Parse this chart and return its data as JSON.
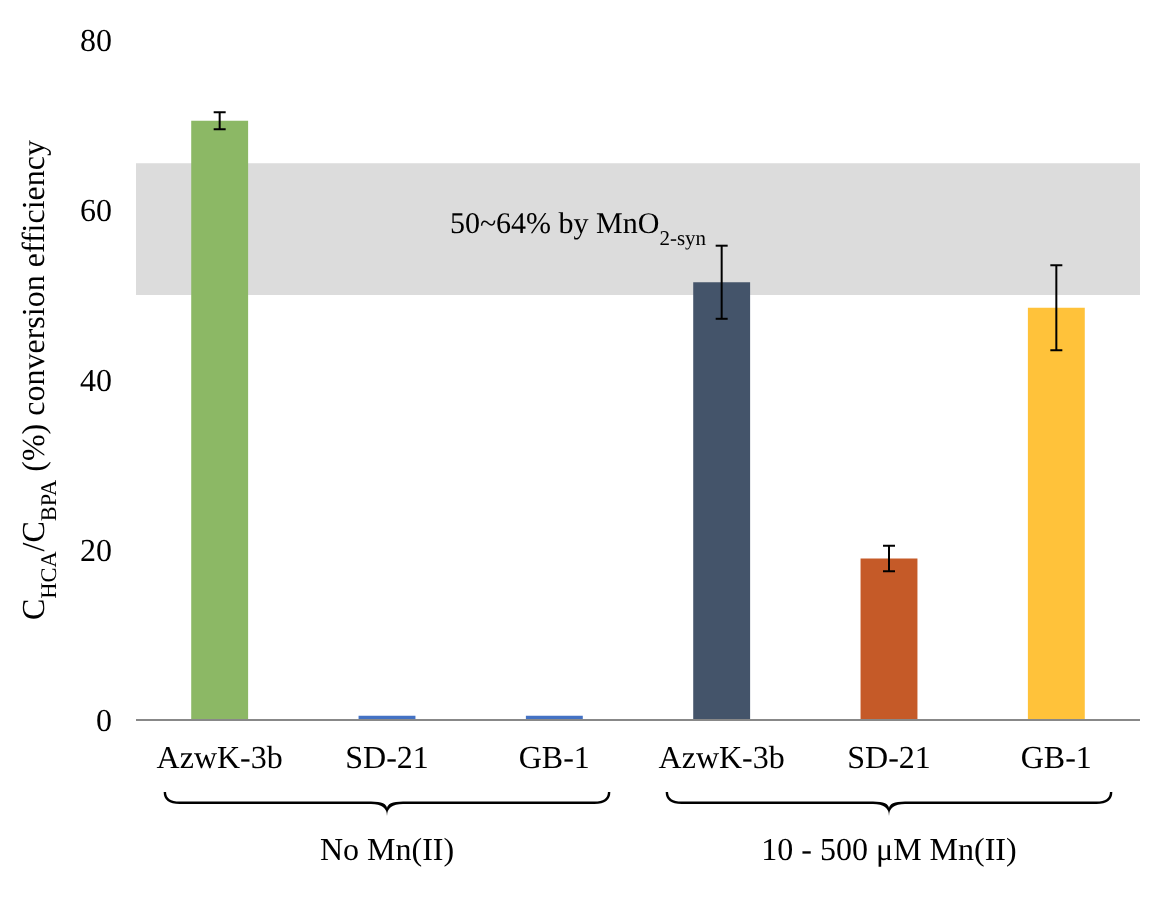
{
  "chart_data": {
    "type": "bar",
    "ylabel": "C$_{HCA}$/C$_{BPA}$ (%) conversion efficiency",
    "categories": [
      "AzwK-3b",
      "SD-21",
      "GB-1",
      "AzwK-3b",
      "SD-21",
      "GB-1"
    ],
    "values": [
      70.5,
      0.5,
      0.5,
      51.5,
      19,
      48.5
    ],
    "colors": [
      "#8cb865",
      "#4472c4",
      "#4472c4",
      "#44546a",
      "#c55a28",
      "#ffc23a"
    ],
    "errors": [
      1,
      null,
      null,
      4.3,
      1.5,
      5
    ],
    "ylim": [
      0,
      80
    ],
    "yticks": [
      0,
      20,
      40,
      60,
      80
    ],
    "grid": false,
    "bands": [
      {
        "axis": "y",
        "from": 50,
        "to": 65.5,
        "label": "50~64% by MnO$_{2-syn}$",
        "color": "#dcdcdc"
      }
    ],
    "annotations": [
      "No Mn(II)",
      "10 - 500 μM Mn(II)"
    ]
  }
}
